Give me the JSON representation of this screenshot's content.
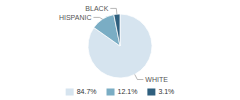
{
  "chart_data": {
    "type": "pie",
    "categories": [
      "WHITE",
      "HISPANIC",
      "BLACK"
    ],
    "values": [
      84.7,
      12.1,
      3.1
    ],
    "value_labels": [
      "84.7%",
      "12.1%",
      "3.1%"
    ],
    "colors": [
      "#d6e4ef",
      "#7aadc4",
      "#2e5f7e"
    ],
    "legend": "bottom"
  }
}
